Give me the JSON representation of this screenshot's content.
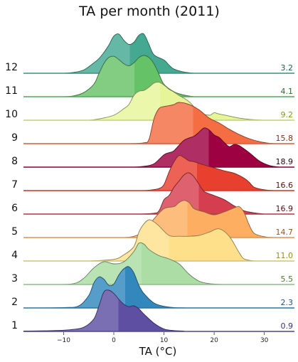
{
  "chart_data": {
    "type": "ridgeline",
    "title": "TA per month (2011)",
    "xlabel": "TA (°C)",
    "xlim": [
      -18,
      36
    ],
    "xticks": [
      -10,
      0,
      10,
      20,
      30
    ],
    "series": [
      {
        "name": "1",
        "mean": 0.9,
        "color": "#5e4fa2",
        "label_color": "#3a3170",
        "density": [
          [
            -18,
            0.01
          ],
          [
            -14,
            0.015
          ],
          [
            -10,
            0.03
          ],
          [
            -8,
            0.05
          ],
          [
            -6,
            0.1
          ],
          [
            -4,
            0.3
          ],
          [
            -3,
            0.6
          ],
          [
            -2,
            0.95
          ],
          [
            -1,
            1.0
          ],
          [
            0,
            0.92
          ],
          [
            1,
            0.78
          ],
          [
            2,
            0.66
          ],
          [
            3,
            0.6
          ],
          [
            4,
            0.62
          ],
          [
            5,
            0.55
          ],
          [
            6,
            0.42
          ],
          [
            8,
            0.2
          ],
          [
            10,
            0.06
          ],
          [
            12,
            0.02
          ],
          [
            14,
            0.01
          ]
        ]
      },
      {
        "name": "2",
        "mean": 2.3,
        "color": "#3288bd",
        "label_color": "#1f5578",
        "density": [
          [
            -18,
            0.0
          ],
          [
            -10,
            0.01
          ],
          [
            -7,
            0.05
          ],
          [
            -5,
            0.3
          ],
          [
            -4,
            0.6
          ],
          [
            -3,
            0.75
          ],
          [
            -2,
            0.7
          ],
          [
            -1,
            0.55
          ],
          [
            0,
            0.58
          ],
          [
            1,
            0.8
          ],
          [
            2,
            0.95
          ],
          [
            3,
            1.0
          ],
          [
            4,
            0.85
          ],
          [
            5,
            0.55
          ],
          [
            6,
            0.35
          ],
          [
            8,
            0.12
          ],
          [
            10,
            0.04
          ],
          [
            12,
            0.01
          ],
          [
            15,
            0.0
          ]
        ]
      },
      {
        "name": "3",
        "mean": 5.5,
        "color": "#abdda4",
        "label_color": "#4d7a2c",
        "density": [
          [
            -12,
            0.0
          ],
          [
            -8,
            0.02
          ],
          [
            -6,
            0.15
          ],
          [
            -4,
            0.4
          ],
          [
            -2,
            0.55
          ],
          [
            0,
            0.5
          ],
          [
            2,
            0.55
          ],
          [
            4,
            0.8
          ],
          [
            5,
            1.0
          ],
          [
            6,
            0.98
          ],
          [
            7,
            0.85
          ],
          [
            9,
            0.7
          ],
          [
            11,
            0.62
          ],
          [
            13,
            0.5
          ],
          [
            15,
            0.25
          ],
          [
            17,
            0.08
          ],
          [
            19,
            0.02
          ],
          [
            22,
            0.0
          ]
        ]
      },
      {
        "name": "4",
        "mean": 11.0,
        "color": "#fee08b",
        "label_color": "#9a8a20",
        "density": [
          [
            -5,
            0.0
          ],
          [
            0,
            0.04
          ],
          [
            2,
            0.15
          ],
          [
            4,
            0.35
          ],
          [
            5,
            0.7
          ],
          [
            6,
            0.9
          ],
          [
            7,
            1.0
          ],
          [
            8,
            0.95
          ],
          [
            9,
            0.85
          ],
          [
            11,
            0.62
          ],
          [
            13,
            0.6
          ],
          [
            15,
            0.6
          ],
          [
            17,
            0.62
          ],
          [
            19,
            0.7
          ],
          [
            21,
            0.78
          ],
          [
            23,
            0.6
          ],
          [
            25,
            0.2
          ],
          [
            26,
            0.05
          ],
          [
            28,
            0.0
          ]
        ]
      },
      {
        "name": "5",
        "mean": 14.7,
        "color": "#fdae61",
        "label_color": "#9a5c10",
        "density": [
          [
            2,
            0.0
          ],
          [
            4,
            0.03
          ],
          [
            6,
            0.15
          ],
          [
            8,
            0.45
          ],
          [
            10,
            0.7
          ],
          [
            12,
            0.75
          ],
          [
            13,
            0.85
          ],
          [
            14,
            0.9
          ],
          [
            15,
            0.85
          ],
          [
            16,
            0.7
          ],
          [
            18,
            0.62
          ],
          [
            20,
            0.55
          ],
          [
            22,
            0.62
          ],
          [
            24,
            0.72
          ],
          [
            25,
            0.75
          ],
          [
            26,
            0.6
          ],
          [
            27,
            0.3
          ],
          [
            28,
            0.1
          ],
          [
            30,
            0.02
          ],
          [
            32,
            0.0
          ]
        ]
      },
      {
        "name": "6",
        "mean": 16.9,
        "color": "#d53e4f",
        "label_color": "#5a0a14",
        "density": [
          [
            5,
            0.0
          ],
          [
            8,
            0.02
          ],
          [
            9,
            0.08
          ],
          [
            10,
            0.35
          ],
          [
            11,
            0.45
          ],
          [
            12,
            0.65
          ],
          [
            13,
            0.8
          ],
          [
            14,
            0.95
          ],
          [
            15,
            1.0
          ],
          [
            16,
            0.9
          ],
          [
            17,
            0.72
          ],
          [
            18,
            0.55
          ],
          [
            20,
            0.45
          ],
          [
            22,
            0.35
          ],
          [
            24,
            0.2
          ],
          [
            26,
            0.08
          ],
          [
            28,
            0.03
          ],
          [
            30,
            0.0
          ]
        ]
      },
      {
        "name": "7",
        "mean": 16.6,
        "color": "#e8402e",
        "label_color": "#5a1008",
        "density": [
          [
            5,
            0.0
          ],
          [
            7,
            0.01
          ],
          [
            9,
            0.05
          ],
          [
            10,
            0.15
          ],
          [
            11,
            0.45
          ],
          [
            12,
            0.7
          ],
          [
            13,
            0.85
          ],
          [
            14,
            0.8
          ],
          [
            15,
            0.72
          ],
          [
            16,
            0.7
          ],
          [
            18,
            0.62
          ],
          [
            20,
            0.55
          ],
          [
            22,
            0.48
          ],
          [
            24,
            0.42
          ],
          [
            26,
            0.3
          ],
          [
            27,
            0.2
          ],
          [
            28,
            0.08
          ],
          [
            30,
            0.02
          ],
          [
            32,
            0.0
          ]
        ]
      },
      {
        "name": "8",
        "mean": 18.9,
        "color": "#9e0142",
        "label_color": "#2a000f",
        "density": [
          [
            4,
            0.0
          ],
          [
            6,
            0.02
          ],
          [
            8,
            0.08
          ],
          [
            10,
            0.3
          ],
          [
            11,
            0.35
          ],
          [
            12,
            0.4
          ],
          [
            14,
            0.65
          ],
          [
            16,
            0.75
          ],
          [
            17,
            0.85
          ],
          [
            18,
            0.95
          ],
          [
            19,
            0.9
          ],
          [
            20,
            0.78
          ],
          [
            21,
            0.72
          ],
          [
            22,
            0.6
          ],
          [
            23,
            0.5
          ],
          [
            24,
            0.55
          ],
          [
            25,
            0.52
          ],
          [
            27,
            0.35
          ],
          [
            29,
            0.15
          ],
          [
            31,
            0.04
          ],
          [
            33,
            0.0
          ]
        ]
      },
      {
        "name": "9",
        "mean": 15.8,
        "color": "#f46d43",
        "label_color": "#8a2e10",
        "density": [
          [
            3,
            0.0
          ],
          [
            6,
            0.02
          ],
          [
            7,
            0.1
          ],
          [
            8,
            0.6
          ],
          [
            9,
            0.85
          ],
          [
            10,
            0.9
          ],
          [
            11,
            0.92
          ],
          [
            12,
            0.95
          ],
          [
            13,
            1.0
          ],
          [
            15,
            0.95
          ],
          [
            17,
            0.82
          ],
          [
            19,
            0.62
          ],
          [
            21,
            0.5
          ],
          [
            23,
            0.35
          ],
          [
            25,
            0.22
          ],
          [
            27,
            0.12
          ],
          [
            29,
            0.05
          ],
          [
            31,
            0.01
          ],
          [
            33,
            0.0
          ]
        ]
      },
      {
        "name": "10",
        "mean": 9.2,
        "color": "#e6f598",
        "label_color": "#8a9a10",
        "density": [
          [
            -5,
            0.0
          ],
          [
            -3,
            0.03
          ],
          [
            0,
            0.12
          ],
          [
            2,
            0.28
          ],
          [
            3,
            0.38
          ],
          [
            4,
            0.6
          ],
          [
            5,
            0.7
          ],
          [
            6,
            0.72
          ],
          [
            7,
            0.8
          ],
          [
            8,
            0.9
          ],
          [
            9,
            0.92
          ],
          [
            10,
            0.85
          ],
          [
            11,
            0.75
          ],
          [
            12,
            0.68
          ],
          [
            13,
            0.6
          ],
          [
            15,
            0.45
          ],
          [
            17,
            0.2
          ],
          [
            19,
            0.12
          ],
          [
            20,
            0.18
          ],
          [
            21,
            0.15
          ],
          [
            23,
            0.1
          ],
          [
            25,
            0.05
          ],
          [
            27,
            0.02
          ],
          [
            30,
            0.0
          ]
        ]
      },
      {
        "name": "11",
        "mean": 4.1,
        "color": "#66c267",
        "label_color": "#2a6b2a",
        "density": [
          [
            -10,
            0.0
          ],
          [
            -8,
            0.02
          ],
          [
            -6,
            0.1
          ],
          [
            -4,
            0.3
          ],
          [
            -3,
            0.55
          ],
          [
            -2,
            0.8
          ],
          [
            -1,
            0.95
          ],
          [
            0,
            0.98
          ],
          [
            1,
            0.9
          ],
          [
            2,
            0.8
          ],
          [
            3,
            0.75
          ],
          [
            4,
            0.82
          ],
          [
            5,
            0.95
          ],
          [
            6,
            1.0
          ],
          [
            7,
            0.95
          ],
          [
            8,
            0.8
          ],
          [
            9,
            0.55
          ],
          [
            10,
            0.3
          ],
          [
            12,
            0.12
          ],
          [
            14,
            0.04
          ],
          [
            16,
            0.0
          ]
        ]
      },
      {
        "name": "12",
        "mean": 3.2,
        "color": "#45a992",
        "label_color": "#1f5a4a",
        "density": [
          [
            -10,
            0.0
          ],
          [
            -8,
            0.02
          ],
          [
            -6,
            0.08
          ],
          [
            -4,
            0.25
          ],
          [
            -3,
            0.35
          ],
          [
            -2,
            0.5
          ],
          [
            -1,
            0.68
          ],
          [
            0,
            0.9
          ],
          [
            1,
            0.95
          ],
          [
            2,
            0.8
          ],
          [
            3,
            0.7
          ],
          [
            4,
            0.75
          ],
          [
            5,
            0.92
          ],
          [
            6,
            0.95
          ],
          [
            7,
            0.7
          ],
          [
            8,
            0.45
          ],
          [
            10,
            0.32
          ],
          [
            11,
            0.2
          ],
          [
            12,
            0.1
          ],
          [
            14,
            0.03
          ],
          [
            16,
            0.0
          ]
        ]
      }
    ]
  }
}
